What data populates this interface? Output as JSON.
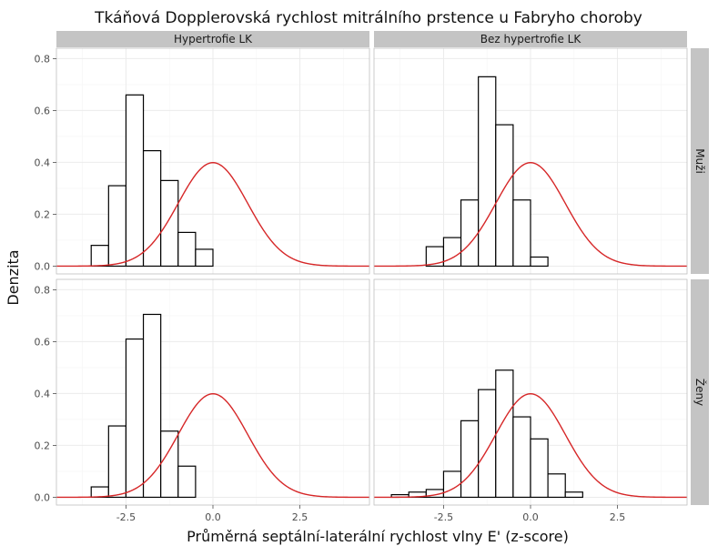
{
  "chart_data": {
    "type": "bar",
    "title": "Tkáňová Dopplerovská rychlost mitrálního prstence u Fabryho choroby",
    "xlabel": "Průměrná septální-laterální rychlost vlny E' (z-score)",
    "ylabel": "Denzita",
    "xlim": [
      -4.5,
      4.5
    ],
    "ylim": [
      -0.03,
      0.84
    ],
    "x_ticks": [
      -2.5,
      0.0,
      2.5
    ],
    "x_tick_labels": [
      "-2.5",
      "0.0",
      "2.5"
    ],
    "y_ticks": [
      0.0,
      0.2,
      0.4,
      0.6,
      0.8
    ],
    "y_tick_labels": [
      "0.0",
      "0.2",
      "0.4",
      "0.6",
      "0.8"
    ],
    "bin_width": 0.5,
    "facet_columns": [
      "Hypertrofie LK",
      "Bez hypertrofie LK"
    ],
    "facet_rows": [
      "Muži",
      "Ženy"
    ],
    "overlay": {
      "type": "line",
      "description_color": "#d62728",
      "x_range": [
        -4.5,
        4.5
      ],
      "mean": 0,
      "sd": 1
    },
    "panels": [
      {
        "column": "Hypertrofie LK",
        "row": "Muži",
        "bins_start": [
          -3.5,
          -3.0,
          -2.5,
          -2.0,
          -1.5,
          -1.0,
          -0.5
        ],
        "values": [
          0.08,
          0.31,
          0.66,
          0.445,
          0.33,
          0.13,
          0.065
        ]
      },
      {
        "column": "Bez hypertrofie LK",
        "row": "Muži",
        "bins_start": [
          -3.0,
          -2.5,
          -2.0,
          -1.5,
          -1.0,
          -0.5,
          0.0
        ],
        "values": [
          0.075,
          0.11,
          0.255,
          0.73,
          0.545,
          0.255,
          0.035
        ]
      },
      {
        "column": "Hypertrofie LK",
        "row": "Ženy",
        "bins_start": [
          -3.5,
          -3.0,
          -2.5,
          -2.0,
          -1.5,
          -1.0,
          -0.5
        ],
        "values": [
          0.04,
          0.275,
          0.61,
          0.705,
          0.255,
          0.12,
          0.0
        ]
      },
      {
        "column": "Bez hypertrofie LK",
        "row": "Ženy",
        "bins_start": [
          -4.0,
          -3.5,
          -3.0,
          -2.5,
          -2.0,
          -1.5,
          -1.0,
          -0.5,
          0.0,
          0.5,
          1.0
        ],
        "values": [
          0.01,
          0.02,
          0.03,
          0.1,
          0.295,
          0.415,
          0.49,
          0.31,
          0.225,
          0.09,
          0.02
        ]
      }
    ]
  }
}
